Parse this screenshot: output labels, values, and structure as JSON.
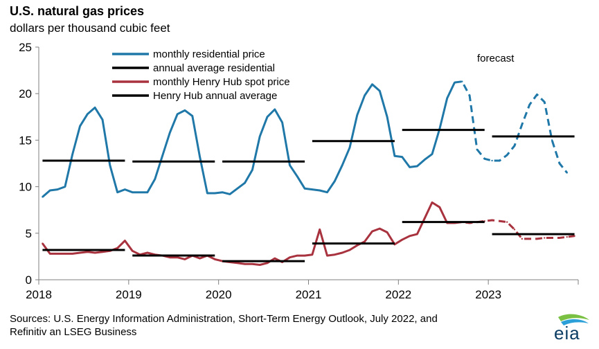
{
  "header": {
    "title": "U.S. natural gas prices",
    "subtitle": "dollars per thousand cubic feet"
  },
  "source": {
    "line1": "Sources: U.S. Energy Information Administration, Short-Term Energy Outlook, July 2022, and",
    "line2": "Refinitiv an LSEG Business"
  },
  "logo": {
    "text": "eia"
  },
  "colors": {
    "residential": "#1f78a8",
    "henry_hub": "#a8323e",
    "average": "#000000",
    "axis": "#7f7f7f"
  },
  "chart_data": {
    "type": "line",
    "ylim": [
      0,
      25
    ],
    "yticks": [
      "0",
      "5",
      "10",
      "15",
      "20",
      "25"
    ],
    "xticks": [
      "2018",
      "2019",
      "2020",
      "2021",
      "2022",
      "2023"
    ],
    "forecast_label": "forecast",
    "forecast_start_month": 55,
    "series": [
      {
        "name": "monthly residential price",
        "style": "line",
        "color": "#1f78a8",
        "values": [
          8.9,
          9.6,
          9.7,
          10.0,
          13.5,
          16.5,
          17.8,
          18.5,
          17.2,
          12.3,
          9.4,
          9.7,
          9.4,
          9.4,
          9.4,
          10.8,
          13.3,
          15.8,
          17.8,
          18.2,
          17.6,
          13.2,
          9.3,
          9.3,
          9.4,
          9.2,
          9.8,
          10.4,
          11.8,
          15.4,
          17.5,
          18.3,
          16.9,
          12.3,
          11.1,
          9.8,
          9.7,
          9.6,
          9.4,
          10.6,
          12.3,
          14.2,
          17.7,
          19.8,
          21.0,
          20.3,
          17.5,
          13.3,
          13.2,
          12.1,
          12.2,
          12.9,
          13.5,
          16.2,
          19.5,
          21.2,
          21.3,
          19.8,
          14.0,
          13.0,
          12.8,
          12.8,
          13.4,
          14.4,
          16.7,
          18.8,
          19.9,
          19.1,
          15.0,
          12.5,
          11.5
        ]
      },
      {
        "name": "annual average residential",
        "style": "step",
        "color": "#000000",
        "values": [
          12.8,
          12.7,
          12.7,
          14.9,
          16.1,
          15.4
        ]
      },
      {
        "name": "monthly Henry Hub spot price",
        "style": "line",
        "color": "#a8323e",
        "values": [
          3.9,
          2.8,
          2.8,
          2.8,
          2.8,
          2.9,
          3.0,
          2.9,
          3.0,
          3.1,
          3.4,
          4.2,
          3.1,
          2.7,
          2.9,
          2.7,
          2.6,
          2.4,
          2.4,
          2.2,
          2.6,
          2.3,
          2.6,
          2.2,
          2.0,
          1.9,
          1.8,
          1.7,
          1.7,
          1.6,
          1.8,
          2.3,
          1.9,
          2.4,
          2.6,
          2.6,
          2.7,
          5.4,
          2.6,
          2.7,
          2.9,
          3.2,
          3.7,
          4.1,
          5.2,
          5.5,
          5.1,
          3.8,
          4.3,
          4.7,
          4.9,
          6.6,
          8.3,
          7.8,
          6.1,
          6.1,
          6.2,
          6.1,
          6.2,
          6.3,
          6.4,
          6.3,
          6.2,
          5.4,
          4.4,
          4.4,
          4.4,
          4.5,
          4.5,
          4.5,
          4.6,
          4.7
        ]
      },
      {
        "name": "Henry Hub annual average",
        "style": "step",
        "color": "#000000",
        "values": [
          3.2,
          2.6,
          2.0,
          3.9,
          6.2,
          4.9
        ]
      }
    ]
  }
}
